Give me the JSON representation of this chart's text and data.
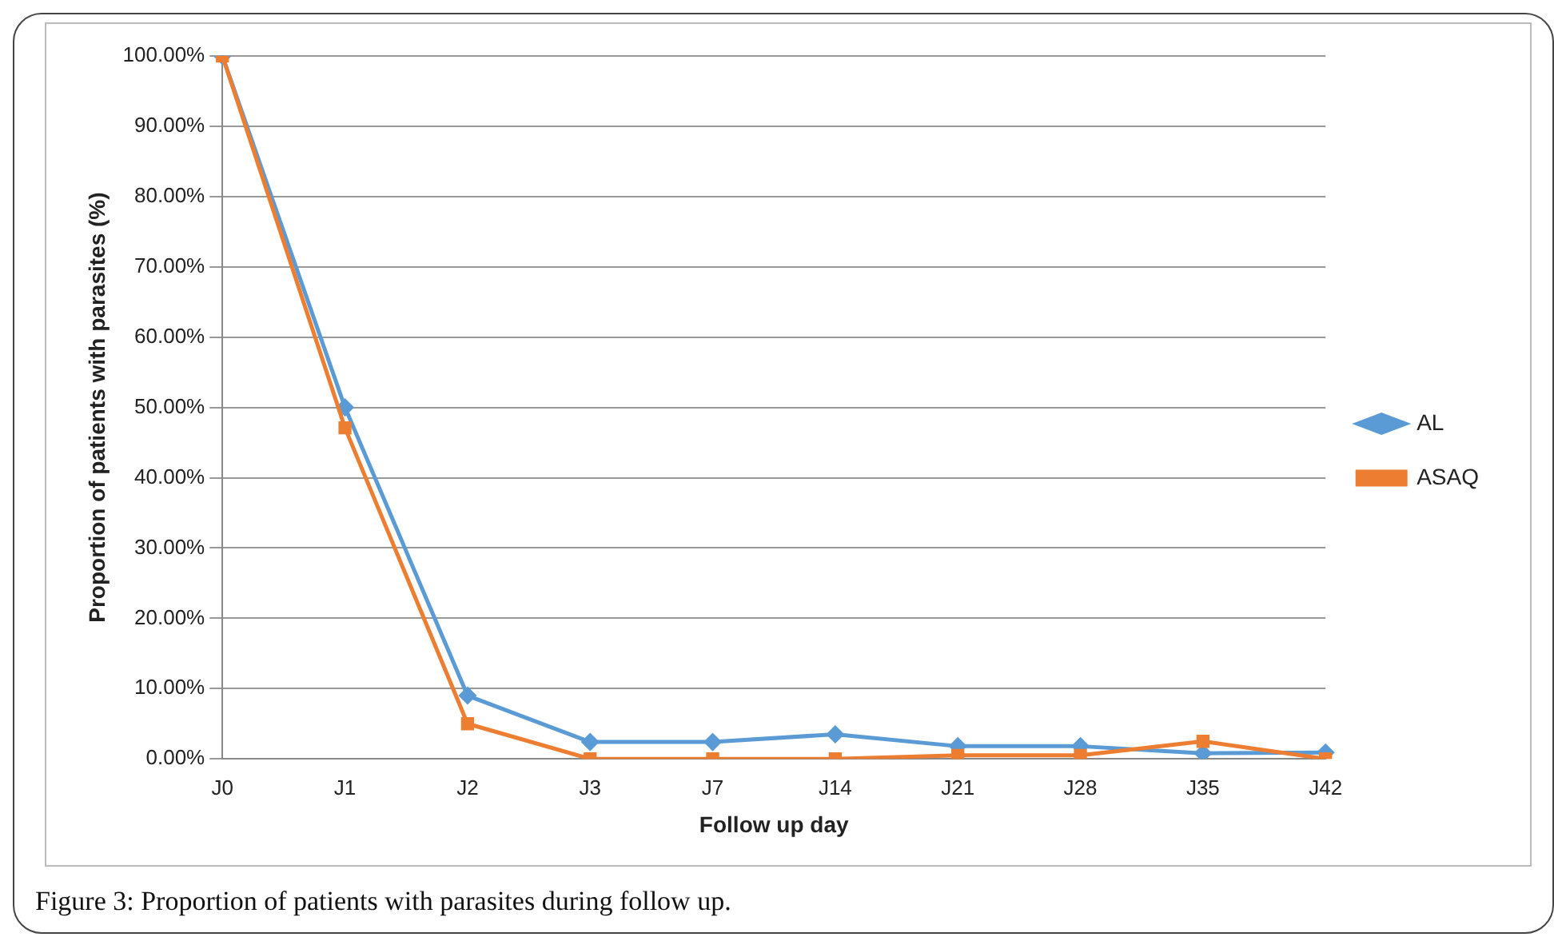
{
  "chart_data": {
    "type": "line",
    "xlabel": "Follow up day",
    "ylabel": "Proportion of patients with parasites (%)",
    "categories": [
      "J0",
      "J1",
      "J2",
      "J3",
      "J7",
      "J14",
      "J21",
      "J28",
      "J35",
      "J42"
    ],
    "series": [
      {
        "name": "AL",
        "color": "#5b9bd5",
        "marker": "diamond",
        "values": [
          100,
          50,
          9,
          2.4,
          2.4,
          3.5,
          1.8,
          1.8,
          0.8,
          0.9
        ]
      },
      {
        "name": "ASAQ",
        "color": "#ed7d31",
        "marker": "square",
        "values": [
          100,
          47.1,
          5,
          0,
          0,
          0,
          0.5,
          0.5,
          2.5,
          0
        ]
      }
    ],
    "ylim": [
      0,
      100
    ],
    "yticks": [
      {
        "value": 0,
        "label": "0.00%"
      },
      {
        "value": 10,
        "label": "10.00%"
      },
      {
        "value": 20,
        "label": "20.00%"
      },
      {
        "value": 30,
        "label": "30.00%"
      },
      {
        "value": 40,
        "label": "40.00%"
      },
      {
        "value": 50,
        "label": "50.00%"
      },
      {
        "value": 60,
        "label": "60.00%"
      },
      {
        "value": 70,
        "label": "70.00%"
      },
      {
        "value": 80,
        "label": "80.00%"
      },
      {
        "value": 90,
        "label": "90.00%"
      },
      {
        "value": 100,
        "label": "100.00%"
      }
    ],
    "grid": "y",
    "legend": "right",
    "line_style": "solid",
    "annotations": [
      "Figure 3: Proportion of patients with parasites during follow up."
    ]
  }
}
